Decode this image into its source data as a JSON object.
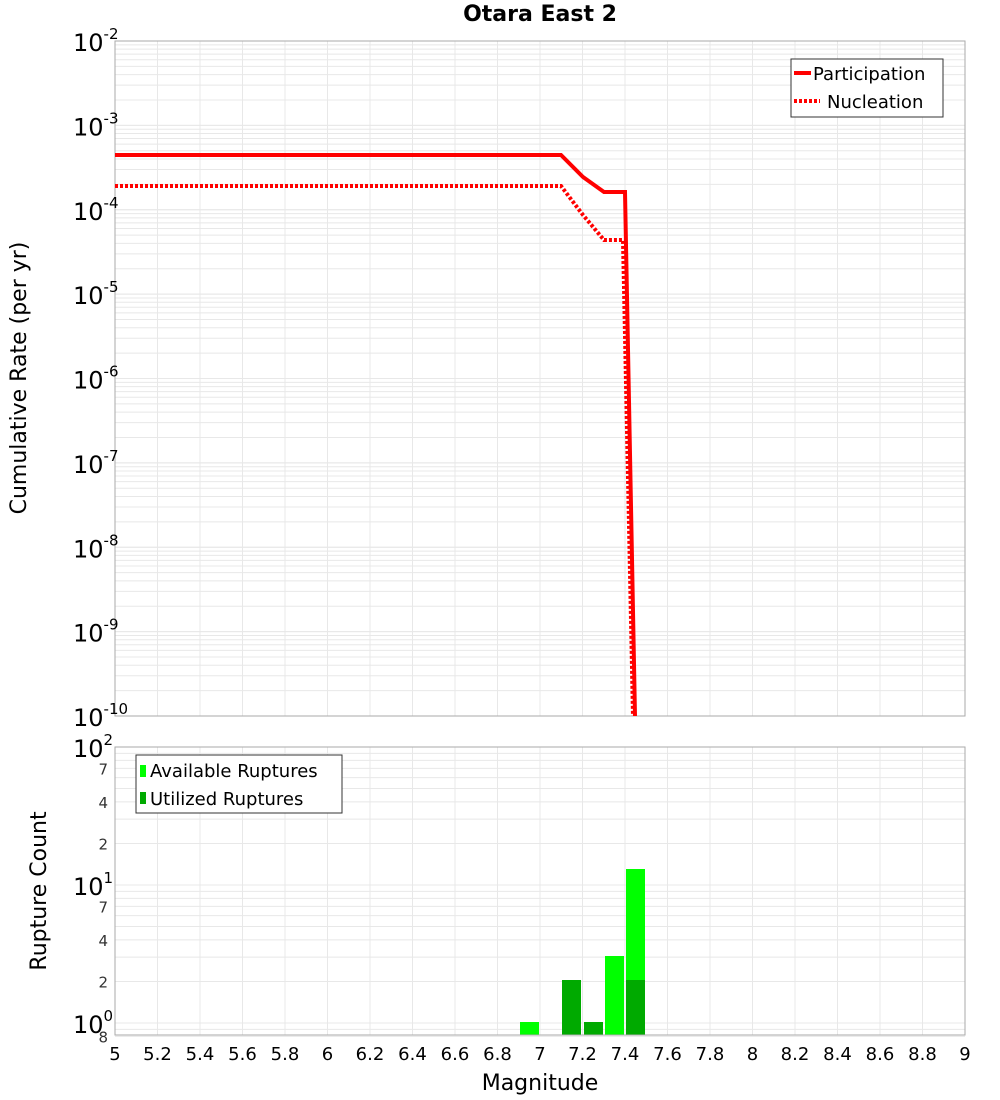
{
  "title": "Otara East 2",
  "chart_data": [
    {
      "type": "line",
      "title": "Otara East 2",
      "xlabel": "Magnitude",
      "ylabel": "Cumulative Rate (per yr)",
      "yscale": "log",
      "xlim": [
        5,
        9
      ],
      "ylim": [
        1e-10,
        0.01
      ],
      "y_ticks": [
        "10^-2",
        "10^-3",
        "10^-4",
        "10^-5",
        "10^-6",
        "10^-7",
        "10^-8",
        "10^-9",
        "10^-10"
      ],
      "grid": true,
      "legend_position": "top-right",
      "series": [
        {
          "name": "Participation",
          "style": "solid",
          "color": "#ff0000",
          "x": [
            5.0,
            7.1,
            7.2,
            7.3,
            7.4,
            7.45
          ],
          "y": [
            0.00045,
            0.00045,
            0.00024,
            0.00016,
            0.00016,
            1e-10
          ]
        },
        {
          "name": "Nucleation",
          "style": "dotted",
          "color": "#ff0000",
          "x": [
            5.0,
            7.1,
            7.2,
            7.3,
            7.4,
            7.45
          ],
          "y": [
            0.00019,
            0.00019,
            8e-05,
            4.4e-05,
            4.4e-05,
            1e-10
          ]
        }
      ]
    },
    {
      "type": "bar",
      "xlabel": "Magnitude",
      "ylabel": "Rupture Count",
      "yscale": "log",
      "xlim": [
        5,
        9
      ],
      "ylim": [
        0.8,
        100
      ],
      "x_ticks": [
        "5",
        "5.2",
        "5.4",
        "5.6",
        "5.8",
        "6",
        "6.2",
        "6.4",
        "6.6",
        "6.8",
        "7",
        "7.2",
        "7.4",
        "7.6",
        "7.8",
        "8",
        "8.2",
        "8.4",
        "8.6",
        "8.8",
        "9"
      ],
      "y_major_ticks": [
        "10^0",
        "10^1",
        "10^2"
      ],
      "y_minor_ticks": [
        "8",
        "2",
        "4",
        "7",
        "2",
        "4",
        "7"
      ],
      "legend_position": "top-left",
      "categories": [
        6.95,
        7.15,
        7.25,
        7.35,
        7.45
      ],
      "series": [
        {
          "name": "Available Ruptures",
          "color": "#00ff00",
          "values": [
            1,
            2,
            1,
            3,
            13
          ]
        },
        {
          "name": "Utilized Ruptures",
          "color": "#00aa00",
          "values": [
            0,
            2,
            1,
            0,
            2
          ]
        }
      ]
    }
  ],
  "top_chart": {
    "ylabel": "Cumulative Rate (per yr)",
    "legend": {
      "participation": "Participation",
      "nucleation": "Nucleation"
    },
    "y_ticks": [
      {
        "base": "10",
        "exp": "-2"
      },
      {
        "base": "10",
        "exp": "-3"
      },
      {
        "base": "10",
        "exp": "-4"
      },
      {
        "base": "10",
        "exp": "-5"
      },
      {
        "base": "10",
        "exp": "-6"
      },
      {
        "base": "10",
        "exp": "-7"
      },
      {
        "base": "10",
        "exp": "-8"
      },
      {
        "base": "10",
        "exp": "-9"
      },
      {
        "base": "10",
        "exp": "-10"
      }
    ]
  },
  "bottom_chart": {
    "ylabel": "Rupture Count",
    "xlabel": "Magnitude",
    "legend": {
      "available": "Available Ruptures",
      "utilized": "Utilized Ruptures"
    },
    "y_major": [
      {
        "base": "10",
        "exp": "2"
      },
      {
        "base": "10",
        "exp": "1"
      },
      {
        "base": "10",
        "exp": "0"
      }
    ],
    "y_minor": [
      "7",
      "4",
      "2",
      "7",
      "4",
      "2",
      "8"
    ],
    "x_ticks": [
      "5",
      "5.2",
      "5.4",
      "5.6",
      "5.8",
      "6",
      "6.2",
      "6.4",
      "6.6",
      "6.8",
      "7",
      "7.2",
      "7.4",
      "7.6",
      "7.8",
      "8",
      "8.2",
      "8.4",
      "8.6",
      "8.8",
      "9"
    ]
  },
  "colors": {
    "participation": "#ff0000",
    "available": "#00ff00",
    "utilized": "#00aa00",
    "grid": "#e8e8e8",
    "axis": "#aaaaaa"
  }
}
